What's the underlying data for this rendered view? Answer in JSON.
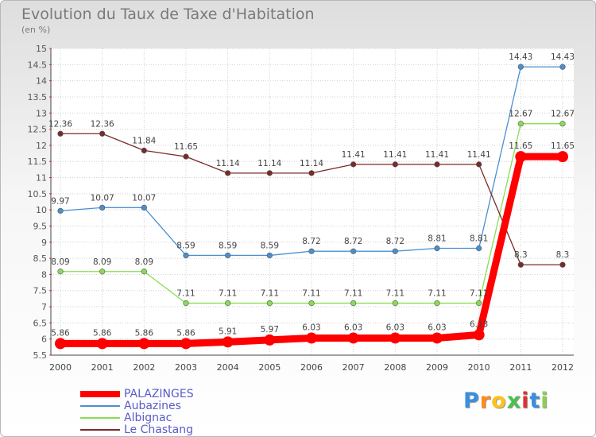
{
  "chart_data": {
    "type": "line",
    "title": "Evolution du Taux de Taxe d'Habitation",
    "unit_label": "(en %)",
    "x": [
      "2000",
      "2001",
      "2002",
      "2003",
      "2004",
      "2005",
      "2006",
      "2007",
      "2008",
      "2009",
      "2010",
      "2011",
      "2012"
    ],
    "ylim": [
      5.5,
      15
    ],
    "yticks": [
      "5.5",
      "6",
      "6.5",
      "7",
      "7.5",
      "8",
      "8.5",
      "9",
      "9.5",
      "10",
      "10.5",
      "11",
      "11.5",
      "12",
      "12.5",
      "13",
      "13.5",
      "14",
      "14.5",
      "15"
    ],
    "grid": true,
    "legend_position": "bottom-left",
    "series": [
      {
        "name": "PALAZINGES",
        "color": "#ff0000",
        "values": [
          5.86,
          5.86,
          5.86,
          5.86,
          5.91,
          5.97,
          6.03,
          6.03,
          6.03,
          6.03,
          6.13,
          11.65,
          11.65
        ],
        "labels": [
          "5.86",
          "5.86",
          "5.86",
          "5.86",
          "5.91",
          "5.97",
          "6.03",
          "6.03",
          "6.03",
          "6.03",
          "6.13",
          "11.65",
          "11.65"
        ]
      },
      {
        "name": "Aubazines",
        "color": "#4a90d0",
        "values": [
          9.97,
          10.07,
          10.07,
          8.59,
          8.59,
          8.59,
          8.72,
          8.72,
          8.72,
          8.81,
          8.81,
          14.43,
          14.43
        ],
        "labels": [
          "9.97",
          "10.07",
          "10.07",
          "8.59",
          "8.59",
          "8.59",
          "8.72",
          "8.72",
          "8.72",
          "8.81",
          "8.81",
          "14.43",
          "14.43"
        ]
      },
      {
        "name": "Albignac",
        "color": "#88dd55",
        "values": [
          8.09,
          8.09,
          8.09,
          7.11,
          7.11,
          7.11,
          7.11,
          7.11,
          7.11,
          7.11,
          7.11,
          12.67,
          12.67
        ],
        "labels": [
          "8.09",
          "8.09",
          "8.09",
          "7.11",
          "7.11",
          "7.11",
          "7.11",
          "7.11",
          "7.11",
          "7.11",
          "7.11",
          "12.67",
          "12.67"
        ]
      },
      {
        "name": "Le Chastang",
        "color": "#7a2a2a",
        "values": [
          12.36,
          12.36,
          11.84,
          11.65,
          11.14,
          11.14,
          11.14,
          11.41,
          11.41,
          11.41,
          11.41,
          8.3,
          8.3
        ],
        "labels": [
          "12.36",
          "12.36",
          "11.84",
          "11.65",
          "11.14",
          "11.14",
          "11.14",
          "11.41",
          "11.41",
          "11.41",
          "11.41",
          "8.3",
          "8.3"
        ]
      }
    ]
  },
  "logo": {
    "letters": [
      "P",
      "r",
      "o",
      "x",
      "i",
      "t",
      "i"
    ],
    "colors": [
      "#3a8ee0",
      "#ff8c1a",
      "#ffc21a",
      "#4cc04c",
      "#e03030",
      "#3a8ee0",
      "#8cd050"
    ]
  }
}
